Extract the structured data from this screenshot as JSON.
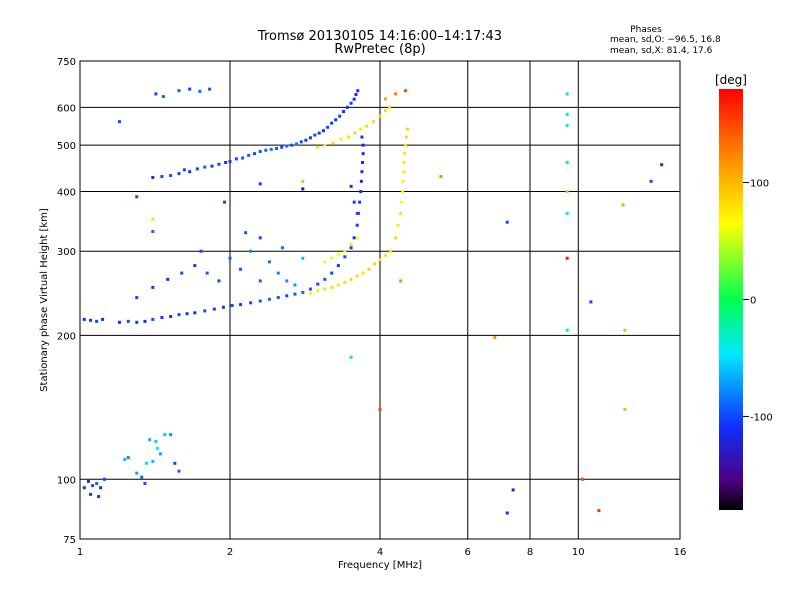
{
  "chart_data": {
    "type": "scatter",
    "title": "Tromsø 20130105 14:16:00–14:17:43",
    "subtitle": "RwPretec (8p)",
    "stats": {
      "heading": "Phases",
      "line_o": "mean, sd,O: −96.5, 16.8",
      "line_x": "mean, sd,X:  81.4, 17.6"
    },
    "xlabel": "Frequency [MHz]",
    "ylabel": "Stationary phase Virtual Height [km]",
    "xscale": "log",
    "yscale": "log",
    "xlim": [
      1,
      16
    ],
    "ylim": [
      75,
      750
    ],
    "x_ticks": [
      1,
      2,
      4,
      6,
      8,
      10,
      16
    ],
    "y_ticks": [
      75,
      100,
      200,
      300,
      400,
      500,
      600,
      750
    ],
    "grid": true,
    "colorbar": {
      "label": "[deg]",
      "range": [
        -180,
        180
      ],
      "ticks": [
        100,
        0,
        -100
      ]
    },
    "series": [
      {
        "points": [
          [
            1.02,
            96,
            -110
          ],
          [
            1.04,
            99,
            -120
          ],
          [
            1.06,
            97,
            -100
          ],
          [
            1.08,
            98,
            -90
          ],
          [
            1.1,
            96,
            -115
          ],
          [
            1.12,
            100,
            -100
          ],
          [
            1.05,
            93,
            -105
          ],
          [
            1.09,
            92,
            -108
          ],
          [
            1.23,
            110,
            -60
          ],
          [
            1.25,
            111,
            -80
          ],
          [
            1.3,
            103,
            -70
          ],
          [
            1.33,
            101,
            -90
          ],
          [
            1.36,
            108,
            -50
          ],
          [
            1.4,
            109,
            -60
          ],
          [
            1.43,
            116,
            -45
          ],
          [
            1.45,
            113,
            -70
          ],
          [
            1.38,
            121,
            -65
          ],
          [
            1.42,
            120,
            -55
          ],
          [
            1.48,
            124,
            -60
          ],
          [
            1.52,
            124,
            -75
          ],
          [
            1.35,
            98,
            -100
          ],
          [
            1.55,
            108,
            -105
          ],
          [
            1.58,
            104,
            -95
          ],
          [
            1.4,
            428,
            -110
          ],
          [
            1.46,
            430,
            -100
          ],
          [
            1.52,
            432,
            -95
          ],
          [
            1.58,
            436,
            -105
          ],
          [
            1.62,
            444,
            -100
          ],
          [
            1.66,
            440,
            -110
          ],
          [
            1.72,
            446,
            -100
          ],
          [
            1.78,
            450,
            -95
          ],
          [
            1.84,
            452,
            -105
          ],
          [
            1.9,
            456,
            -100
          ],
          [
            1.96,
            460,
            -110
          ],
          [
            2.0,
            462,
            -105
          ],
          [
            2.06,
            468,
            -100
          ],
          [
            2.12,
            470,
            -95
          ],
          [
            2.18,
            476,
            -90
          ],
          [
            2.24,
            480,
            -100
          ],
          [
            2.3,
            485,
            -95
          ],
          [
            2.36,
            488,
            -90
          ],
          [
            2.42,
            490,
            -85
          ],
          [
            2.48,
            492,
            -95
          ],
          [
            2.54,
            495,
            -100
          ],
          [
            2.6,
            498,
            -90
          ],
          [
            2.66,
            500,
            -95
          ],
          [
            2.72,
            503,
            -85
          ],
          [
            2.78,
            508,
            -100
          ],
          [
            2.84,
            512,
            -105
          ],
          [
            2.9,
            518,
            -110
          ],
          [
            2.96,
            525,
            -100
          ],
          [
            3.02,
            530,
            -105
          ],
          [
            3.08,
            536,
            -110
          ],
          [
            3.14,
            545,
            -100
          ],
          [
            3.2,
            556,
            -105
          ],
          [
            3.26,
            565,
            -110
          ],
          [
            3.32,
            575,
            -100
          ],
          [
            3.38,
            588,
            -110
          ],
          [
            3.44,
            600,
            -115
          ],
          [
            3.5,
            612,
            -105
          ],
          [
            3.55,
            624,
            -110
          ],
          [
            3.58,
            638,
            -115
          ],
          [
            3.61,
            650,
            -110
          ],
          [
            1.42,
            640,
            -100
          ],
          [
            1.47,
            632,
            -90
          ],
          [
            1.58,
            650,
            -95
          ],
          [
            1.66,
            655,
            -100
          ],
          [
            1.74,
            648,
            -90
          ],
          [
            1.82,
            655,
            -95
          ],
          [
            1.2,
            560,
            -100
          ],
          [
            3.0,
            495,
            80
          ],
          [
            3.1,
            500,
            75
          ],
          [
            3.22,
            505,
            82
          ],
          [
            3.34,
            515,
            70
          ],
          [
            3.46,
            520,
            80
          ],
          [
            3.56,
            530,
            85
          ],
          [
            3.66,
            540,
            75
          ],
          [
            3.76,
            548,
            82
          ],
          [
            3.88,
            560,
            80
          ],
          [
            4.0,
            575,
            85
          ],
          [
            4.1,
            590,
            82
          ],
          [
            4.18,
            600,
            80
          ],
          [
            1.02,
            216,
            -110
          ],
          [
            1.05,
            215,
            -105
          ],
          [
            1.08,
            214,
            -100
          ],
          [
            1.11,
            216,
            -115
          ],
          [
            1.2,
            213,
            -110
          ],
          [
            1.25,
            214,
            -100
          ],
          [
            1.3,
            213,
            -105
          ],
          [
            1.35,
            214,
            -110
          ],
          [
            1.4,
            216,
            -100
          ],
          [
            1.46,
            218,
            -105
          ],
          [
            1.52,
            219,
            -110
          ],
          [
            1.58,
            221,
            -100
          ],
          [
            1.64,
            222,
            -105
          ],
          [
            1.7,
            223,
            -110
          ],
          [
            1.78,
            225,
            -100
          ],
          [
            1.86,
            227,
            -105
          ],
          [
            1.94,
            229,
            -110
          ],
          [
            2.02,
            231,
            -100
          ],
          [
            2.1,
            232,
            -105
          ],
          [
            2.2,
            234,
            -100
          ],
          [
            2.3,
            236,
            -95
          ],
          [
            2.4,
            238,
            -90
          ],
          [
            2.5,
            240,
            -95
          ],
          [
            2.6,
            242,
            -100
          ],
          [
            2.7,
            244,
            -95
          ],
          [
            1.3,
            240,
            -100
          ],
          [
            1.4,
            252,
            -105
          ],
          [
            1.5,
            262,
            -110
          ],
          [
            1.6,
            270,
            -100
          ],
          [
            1.7,
            280,
            -105
          ],
          [
            1.8,
            270,
            -95
          ],
          [
            1.9,
            260,
            -100
          ],
          [
            2.0,
            290,
            -90
          ],
          [
            2.1,
            275,
            -95
          ],
          [
            2.2,
            300,
            -80
          ],
          [
            2.3,
            260,
            -90
          ],
          [
            2.4,
            285,
            -85
          ],
          [
            2.5,
            270,
            -80
          ],
          [
            2.6,
            260,
            -75
          ],
          [
            2.7,
            255,
            -70
          ],
          [
            2.8,
            290,
            -60
          ],
          [
            2.55,
            305,
            -90
          ],
          [
            2.3,
            320,
            -100
          ],
          [
            2.15,
            328,
            -95
          ],
          [
            1.75,
            300,
            -100
          ],
          [
            2.8,
            246,
            -90
          ],
          [
            2.9,
            250,
            -95
          ],
          [
            3.0,
            256,
            -100
          ],
          [
            3.1,
            262,
            -95
          ],
          [
            3.2,
            270,
            -100
          ],
          [
            3.3,
            280,
            -105
          ],
          [
            3.4,
            292,
            -100
          ],
          [
            3.5,
            305,
            -105
          ],
          [
            3.55,
            320,
            -110
          ],
          [
            3.6,
            340,
            -105
          ],
          [
            3.62,
            360,
            -110
          ],
          [
            3.64,
            380,
            -105
          ],
          [
            3.66,
            400,
            -110
          ],
          [
            3.67,
            420,
            -115
          ],
          [
            3.68,
            440,
            -110
          ],
          [
            3.69,
            460,
            -115
          ],
          [
            3.7,
            480,
            -110
          ],
          [
            3.7,
            500,
            -115
          ],
          [
            3.68,
            520,
            -110
          ],
          [
            3.6,
            360,
            -100
          ],
          [
            3.55,
            380,
            -105
          ],
          [
            3.5,
            410,
            -110
          ],
          [
            2.9,
            245,
            70
          ],
          [
            3.0,
            248,
            75
          ],
          [
            3.1,
            250,
            80
          ],
          [
            3.2,
            252,
            82
          ],
          [
            3.3,
            255,
            78
          ],
          [
            3.4,
            258,
            80
          ],
          [
            3.5,
            262,
            85
          ],
          [
            3.6,
            266,
            82
          ],
          [
            3.7,
            270,
            80
          ],
          [
            3.8,
            275,
            85
          ],
          [
            3.9,
            282,
            82
          ],
          [
            4.0,
            288,
            80
          ],
          [
            4.1,
            294,
            78
          ],
          [
            4.2,
            300,
            80
          ],
          [
            4.3,
            320,
            82
          ],
          [
            4.35,
            340,
            75
          ],
          [
            4.4,
            360,
            80
          ],
          [
            4.42,
            380,
            70
          ],
          [
            4.44,
            400,
            75
          ],
          [
            4.45,
            420,
            70
          ],
          [
            4.46,
            440,
            72
          ],
          [
            4.47,
            460,
            78
          ],
          [
            4.48,
            480,
            75
          ],
          [
            4.5,
            500,
            80
          ],
          [
            4.52,
            520,
            82
          ],
          [
            4.54,
            540,
            85
          ],
          [
            4.4,
            260,
            120
          ],
          [
            3.1,
            285,
            60
          ],
          [
            3.2,
            290,
            70
          ],
          [
            3.3,
            295,
            65
          ],
          [
            3.4,
            300,
            70
          ],
          [
            3.5,
            310,
            75
          ],
          [
            3.6,
            320,
            70
          ],
          [
            1.4,
            350,
            80
          ],
          [
            1.3,
            390,
            -100
          ],
          [
            1.4,
            330,
            -90
          ],
          [
            1.95,
            380,
            -100
          ],
          [
            2.3,
            415,
            -105
          ],
          [
            2.8,
            420,
            100
          ],
          [
            2.8,
            405,
            -140
          ],
          [
            3.5,
            180,
            -20
          ],
          [
            4.0,
            140,
            150
          ],
          [
            4.5,
            650,
            150
          ],
          [
            4.3,
            640,
            130
          ],
          [
            4.1,
            625,
            110
          ],
          [
            5.3,
            430,
            120
          ],
          [
            6.8,
            198,
            115
          ],
          [
            7.2,
            345,
            -100
          ],
          [
            7.2,
            85,
            -110
          ],
          [
            7.4,
            95,
            -120
          ],
          [
            9.5,
            640,
            -50
          ],
          [
            9.5,
            580,
            -40
          ],
          [
            9.5,
            550,
            -30
          ],
          [
            9.5,
            460,
            -20
          ],
          [
            9.5,
            400,
            30
          ],
          [
            9.5,
            360,
            -30
          ],
          [
            9.5,
            290,
            170
          ],
          [
            9.5,
            205,
            -30
          ],
          [
            10.2,
            100,
            150
          ],
          [
            10.6,
            235,
            -100
          ],
          [
            11.0,
            86,
            160
          ],
          [
            12.3,
            375,
            110
          ],
          [
            12.4,
            205,
            100
          ],
          [
            12.4,
            140,
            100
          ],
          [
            14.0,
            420,
            -100
          ],
          [
            14.7,
            455,
            -110
          ]
        ]
      }
    ]
  }
}
